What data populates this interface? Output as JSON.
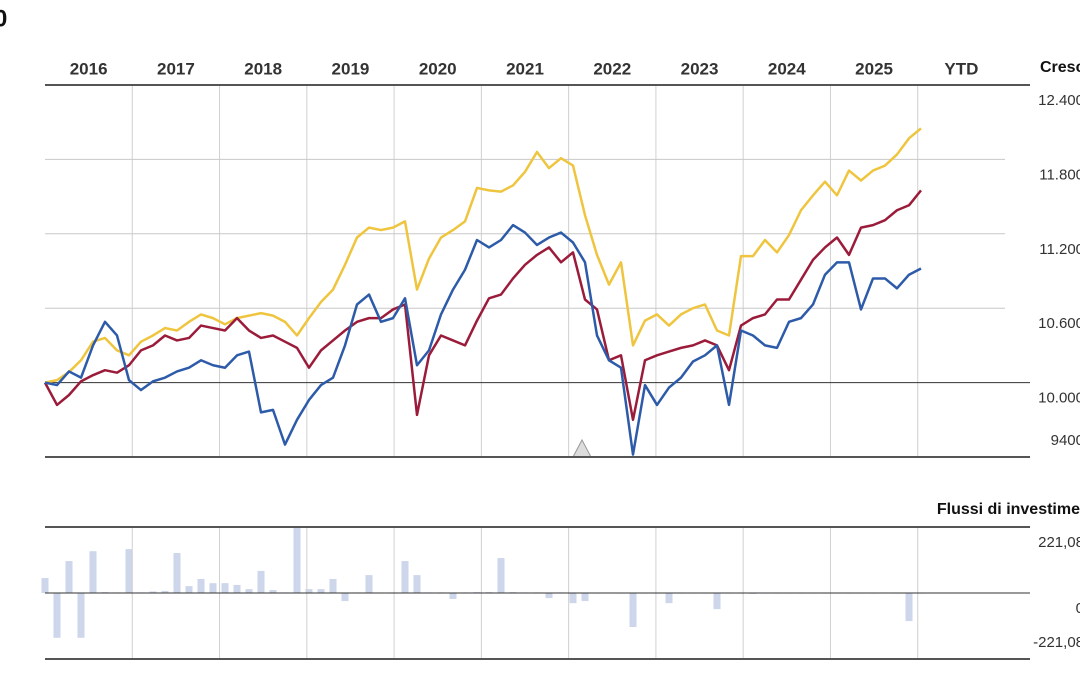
{
  "header_fragment": "0",
  "chart_data": [
    {
      "type": "line",
      "title": "Cresc",
      "period_labels": [
        "2016",
        "2017",
        "2018",
        "2019",
        "2020",
        "2021",
        "2022",
        "2023",
        "2024",
        "2025",
        "YTD"
      ],
      "ylim": [
        9400,
        12400
      ],
      "yticks": [
        {
          "value": 12400,
          "label": "12.400"
        },
        {
          "value": 11800,
          "label": "11.800"
        },
        {
          "value": 11200,
          "label": "11.200"
        },
        {
          "value": 10600,
          "label": "10.600"
        },
        {
          "value": 10000,
          "label": "10.000"
        },
        9400
      ],
      "grid": true,
      "series": [
        {
          "color": "#efc53f",
          "values": [
            10000,
            10020,
            10085,
            10180,
            10330,
            10360,
            10260,
            10220,
            10330,
            10380,
            10440,
            10420,
            10490,
            10550,
            10520,
            10470,
            10520,
            10540,
            10560,
            10540,
            10490,
            10380,
            10520,
            10650,
            10750,
            10950,
            11170,
            11250,
            11230,
            11250,
            11300,
            10750,
            11000,
            11170,
            11230,
            11300,
            11570,
            11550,
            11540,
            11590,
            11700,
            11860,
            11730,
            11810,
            11750,
            11350,
            11030,
            10790,
            10970,
            10300,
            10500,
            10550,
            10460,
            10550,
            10600,
            10630,
            10420,
            10380,
            11020,
            11020,
            11150,
            11050,
            11190,
            11390,
            11510,
            11620,
            11510,
            11710,
            11630,
            11710,
            11750,
            11840,
            11970,
            12050
          ]
        },
        {
          "color": "#9b1c3a",
          "values": [
            10000,
            9820,
            9900,
            10010,
            10060,
            10100,
            10080,
            10140,
            10260,
            10300,
            10380,
            10340,
            10360,
            10460,
            10440,
            10420,
            10520,
            10420,
            10360,
            10380,
            10330,
            10280,
            10120,
            10260,
            10340,
            10420,
            10490,
            10520,
            10520,
            10590,
            10630,
            9740,
            10220,
            10380,
            10340,
            10300,
            10500,
            10680,
            10710,
            10840,
            10950,
            11030,
            11090,
            10970,
            11050,
            10670,
            10590,
            10180,
            10220,
            9700,
            10180,
            10220,
            10250,
            10280,
            10300,
            10340,
            10300,
            10100,
            10460,
            10520,
            10550,
            10670,
            10670,
            10830,
            10990,
            11090,
            11170,
            11030,
            11250,
            11270,
            11310,
            11390,
            11430,
            11550
          ]
        },
        {
          "color": "#2d5ba9",
          "values": [
            10000,
            9980,
            10090,
            10040,
            10300,
            10490,
            10380,
            10020,
            9940,
            10010,
            10040,
            10090,
            10120,
            10180,
            10140,
            10120,
            10220,
            10250,
            9760,
            9780,
            9500,
            9700,
            9860,
            9980,
            10040,
            10300,
            10630,
            10710,
            10490,
            10520,
            10680,
            10140,
            10260,
            10550,
            10750,
            10910,
            11150,
            11090,
            11150,
            11270,
            11210,
            11110,
            11170,
            11210,
            11130,
            10970,
            10380,
            10180,
            10120,
            9420,
            9980,
            9820,
            9960,
            10040,
            10170,
            10220,
            10300,
            9820,
            10420,
            10380,
            10300,
            10280,
            10490,
            10520,
            10630,
            10870,
            10970,
            10970,
            10590,
            10840,
            10840,
            10760,
            10870,
            10920
          ]
        }
      ]
    },
    {
      "type": "bar",
      "title": "Flussi di investime",
      "color": "#cdd6ea",
      "ylim": [
        -221.08,
        221.08
      ],
      "yticks": [
        {
          "value": 221.08,
          "label": "221,08"
        },
        0,
        {
          "value": -221.08,
          "label": "-221,08"
        }
      ],
      "values": [
        50,
        -150,
        107,
        -150,
        140,
        3,
        2,
        147,
        2,
        5,
        7,
        134,
        23,
        47,
        33,
        33,
        27,
        13,
        74,
        10,
        2,
        218,
        13,
        13,
        47,
        -27,
        2,
        60,
        1,
        2,
        107,
        60,
        2,
        2,
        -20,
        2,
        3,
        3,
        117,
        3,
        2,
        2,
        -17,
        2,
        -34,
        -27,
        -2,
        1,
        -2,
        -114,
        -2,
        -2,
        -34,
        -2,
        -2,
        -2,
        -54,
        -2,
        -2,
        -3,
        -2,
        -2,
        -2,
        -2,
        -2,
        -2,
        -2,
        -2,
        -2,
        -2,
        -1,
        -2,
        -94,
        -2
      ]
    }
  ]
}
